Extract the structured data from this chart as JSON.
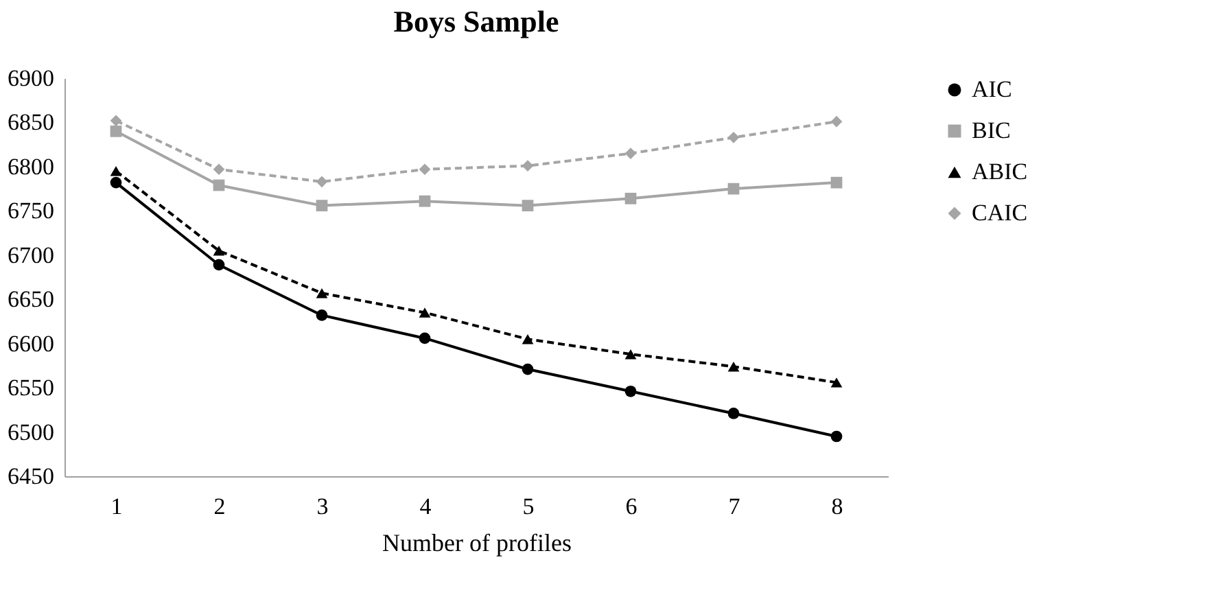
{
  "chart_data": {
    "type": "line",
    "title": "Boys Sample",
    "xlabel": "Number of profiles",
    "categories": [
      "1",
      "2",
      "3",
      "4",
      "5",
      "6",
      "7",
      "8"
    ],
    "ylim": [
      6450,
      6900
    ],
    "yticks": [
      6450,
      6500,
      6550,
      6600,
      6650,
      6700,
      6750,
      6800,
      6850,
      6900
    ],
    "grid": false,
    "legend": "right",
    "series": [
      {
        "name": "AIC",
        "color": "#000000",
        "marker": "circle",
        "line_style": "solid",
        "values": [
          6782,
          6689,
          6632,
          6606,
          6571,
          6546,
          6521,
          6495
        ]
      },
      {
        "name": "BIC",
        "color": "#a5a5a5",
        "marker": "square",
        "line_style": "solid",
        "values": [
          6840,
          6779,
          6756,
          6761,
          6756,
          6764,
          6775,
          6782
        ]
      },
      {
        "name": "ABIC",
        "color": "#000000",
        "marker": "triangle",
        "line_style": "dashed",
        "values": [
          6795,
          6705,
          6657,
          6635,
          6605,
          6588,
          6574,
          6556
        ]
      },
      {
        "name": "CAIC",
        "color": "#a5a5a5",
        "marker": "diamond",
        "line_style": "dashed",
        "values": [
          6852,
          6797,
          6783,
          6797,
          6801,
          6815,
          6833,
          6851
        ]
      }
    ]
  }
}
